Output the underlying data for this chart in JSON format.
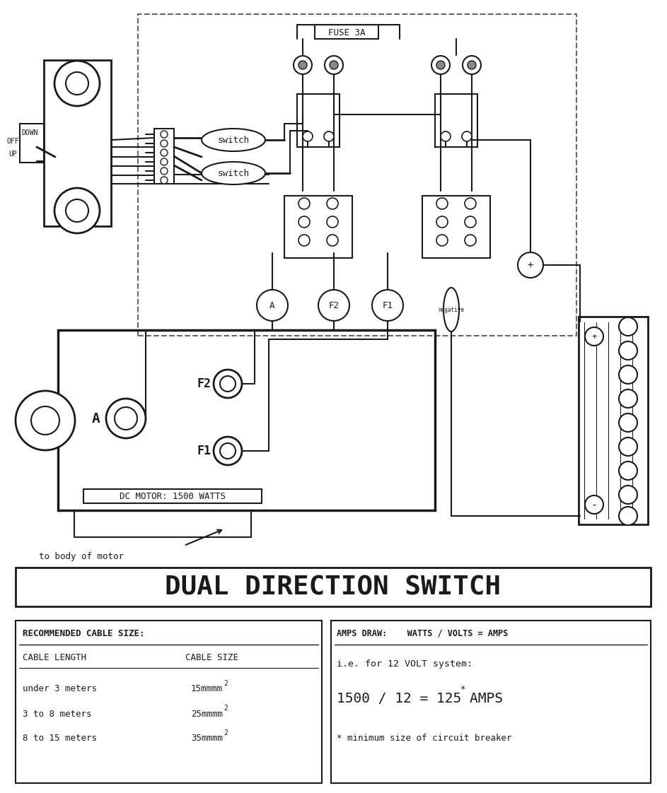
{
  "title": "DUAL DIRECTION SWITCH",
  "bg_color": "#ffffff",
  "line_color": "#1a1a1a",
  "fuse_label": "FUSE 3A",
  "switch_label": "switch",
  "motor_label": "DC MOTOR: 1500 WATTS",
  "motor_body_label": "to body of motor",
  "labels_off": "OFF",
  "labels_up": "UP",
  "labels_down": "DOWN",
  "cable_title": "RECOMMENDED CABLE SIZE:",
  "cable_col1_header": "CABLE LENGTH",
  "cable_col2_header": "CABLE SIZE",
  "cable_row1_len": "under 3 meters",
  "cable_row1_size": "15mm",
  "cable_row2_len": "3 to 8 meters",
  "cable_row2_size": "25mm",
  "cable_row3_len": "8 to 15 meters",
  "cable_row3_size": "35mm",
  "amps_title": "AMPS DRAW:    WATTS / VOLTS = AMPS",
  "amps_line1": "i.e. for 12 VOLT system:",
  "amps_line2": "1500 / 12 = 125 AMPS",
  "amps_line3": "* minimum size of circuit breaker"
}
